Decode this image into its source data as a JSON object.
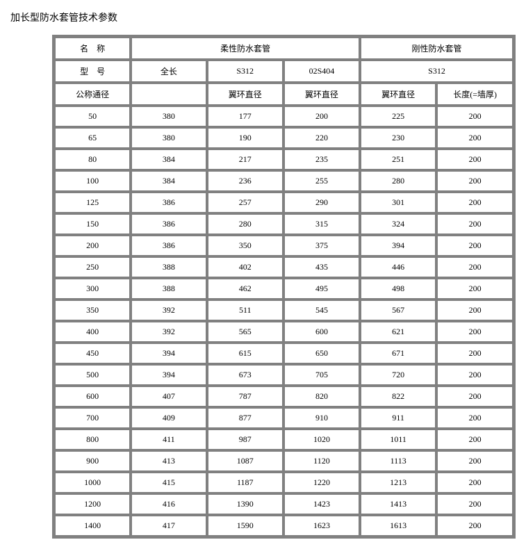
{
  "title": "加长型防水套管技术参数",
  "header": {
    "row1": {
      "c0": "名　称",
      "c1": "柔性防水套管",
      "c2": "刚性防水套管"
    },
    "row2": {
      "c0": "型　号",
      "c1": "全长",
      "c2": "S312",
      "c3": "02S404",
      "c4": "S312"
    },
    "row3": {
      "c0": "公称通径",
      "c1": "",
      "c2": "翼环直径",
      "c3": "翼环直径",
      "c4": "翼环直径",
      "c5": "长度(=墙厚)"
    }
  },
  "rows": [
    [
      "50",
      "380",
      "177",
      "200",
      "225",
      "200"
    ],
    [
      "65",
      "380",
      "190",
      "220",
      "230",
      "200"
    ],
    [
      "80",
      "384",
      "217",
      "235",
      "251",
      "200"
    ],
    [
      "100",
      "384",
      "236",
      "255",
      "280",
      "200"
    ],
    [
      "125",
      "386",
      "257",
      "290",
      "301",
      "200"
    ],
    [
      "150",
      "386",
      "280",
      "315",
      "324",
      "200"
    ],
    [
      "200",
      "386",
      "350",
      "375",
      "394",
      "200"
    ],
    [
      "250",
      "388",
      "402",
      "435",
      "446",
      "200"
    ],
    [
      "300",
      "388",
      "462",
      "495",
      "498",
      "200"
    ],
    [
      "350",
      "392",
      "511",
      "545",
      "567",
      "200"
    ],
    [
      "400",
      "392",
      "565",
      "600",
      "621",
      "200"
    ],
    [
      "450",
      "394",
      "615",
      "650",
      "671",
      "200"
    ],
    [
      "500",
      "394",
      "673",
      "705",
      "720",
      "200"
    ],
    [
      "600",
      "407",
      "787",
      "820",
      "822",
      "200"
    ],
    [
      "700",
      "409",
      "877",
      "910",
      "911",
      "200"
    ],
    [
      "800",
      "411",
      "987",
      "1020",
      "1011",
      "200"
    ],
    [
      "900",
      "413",
      "1087",
      "1120",
      "1113",
      "200"
    ],
    [
      "1000",
      "415",
      "1187",
      "1220",
      "1213",
      "200"
    ],
    [
      "1200",
      "416",
      "1390",
      "1423",
      "1413",
      "200"
    ],
    [
      "1400",
      "417",
      "1590",
      "1623",
      "1613",
      "200"
    ]
  ]
}
